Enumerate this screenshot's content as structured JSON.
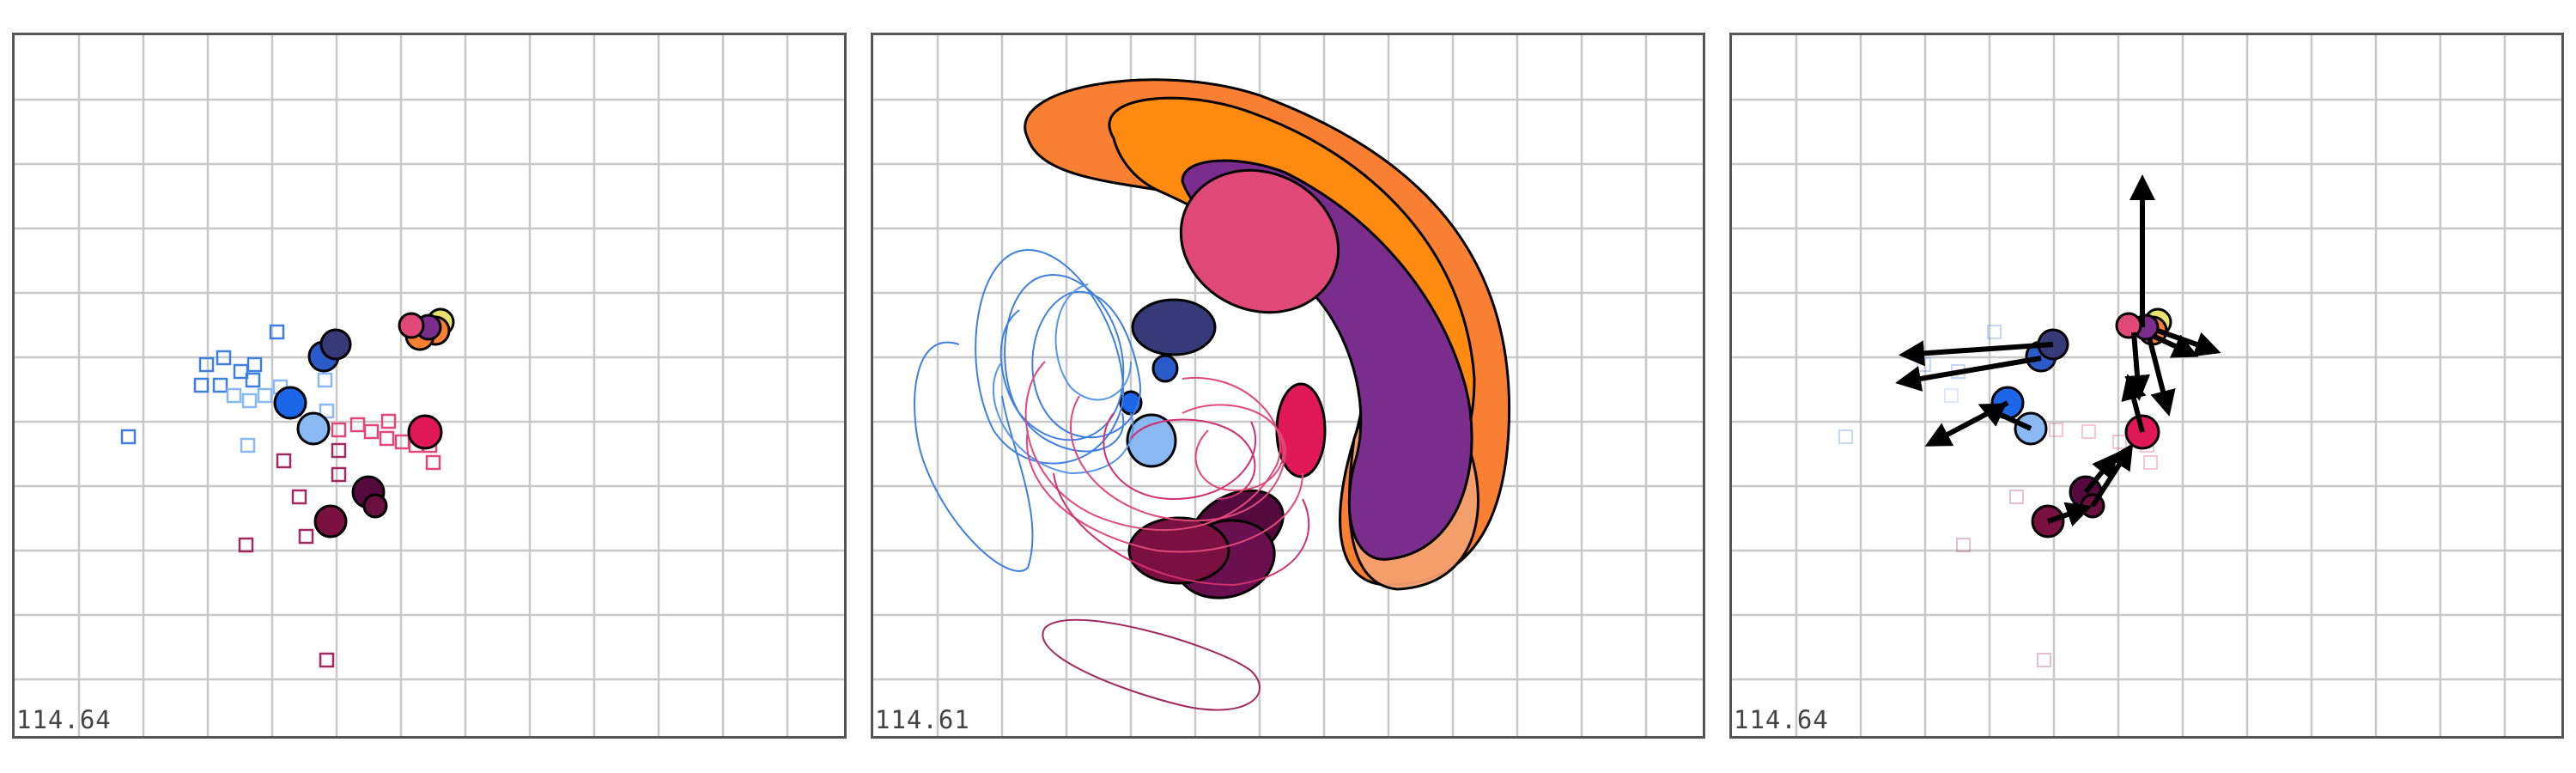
{
  "panels": [
    {
      "id": "panel-1",
      "readout": "114.64"
    },
    {
      "id": "panel-2",
      "readout": "114.61"
    },
    {
      "id": "panel-3",
      "readout": "114.64"
    }
  ],
  "colors": {
    "grid": "#c8c8c8",
    "frame": "#555555",
    "blue_light": "#8ab8f2",
    "blue": "#3f7fe0",
    "blue_bright": "#1e66e8",
    "blue_dark": "#2b5bc9",
    "navy": "#363a78",
    "pink": "#e0487a",
    "crimson": "#e0185a",
    "maroon": "#7a1040",
    "dark_plum": "#550a3e",
    "purple": "#7b2d8e",
    "orange": "#f97f33",
    "orange_dark": "#ff8a10",
    "salmon": "#f4a070",
    "yellow": "#e8e070",
    "arrow": "#000000"
  },
  "icons": [
    "square-marker",
    "circle-marker",
    "ellipse-blob",
    "arrow"
  ]
}
